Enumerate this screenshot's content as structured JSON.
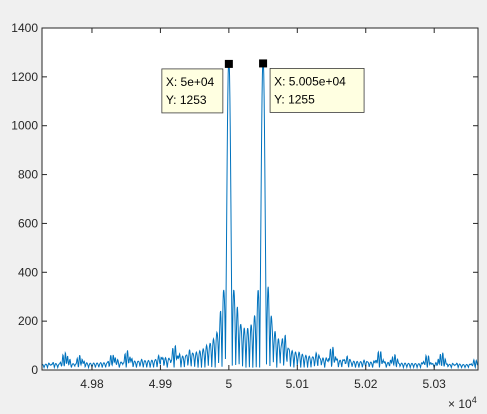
{
  "colors": {
    "figure_bg": "#f0f0f0",
    "axes_bg": "#ffffff",
    "line": "#0072bd",
    "axis": "#262626",
    "datatip_bg": "#ffffe1",
    "marker": "#000000"
  },
  "chart_data": {
    "type": "line",
    "title": "",
    "xlabel": "",
    "ylabel": "",
    "x_exponent_label": "× 10^4",
    "x_exponent_base": "× 10",
    "x_exponent_power": "4",
    "xlim": [
      49727,
      50364
    ],
    "ylim": [
      0,
      1400
    ],
    "grid": false,
    "legend": "none",
    "x_tick_values": [
      4.98,
      4.99,
      5.0,
      5.01,
      5.02,
      5.03
    ],
    "x_tick_labels": [
      "4.98",
      "4.99",
      "5",
      "5.01",
      "5.02",
      "5.03"
    ],
    "y_tick_values": [
      0,
      200,
      400,
      600,
      800,
      1000,
      1200,
      1400
    ],
    "y_tick_labels": [
      "0",
      "200",
      "400",
      "600",
      "800",
      "1000",
      "1200",
      "1400"
    ],
    "peaks": [
      {
        "x": 50000,
        "y": 1253
      },
      {
        "x": 50050,
        "y": 1255
      }
    ],
    "datatips": [
      {
        "x_text": "X: 5e+04",
        "y_text": "Y: 1253",
        "x": 50000,
        "y": 1253,
        "side": "left"
      },
      {
        "x_text": "X: 5.005e+04",
        "y_text": "Y: 1255",
        "x": 50050,
        "y": 1255,
        "side": "right"
      }
    ]
  }
}
